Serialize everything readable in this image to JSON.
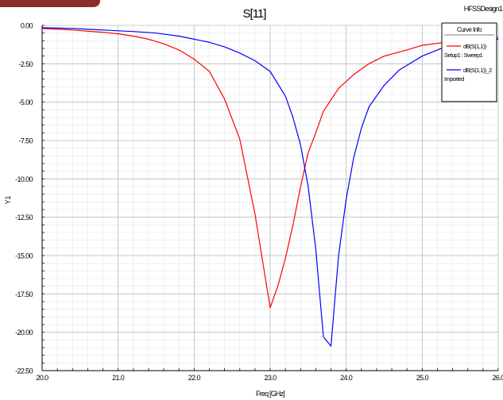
{
  "chart_data": {
    "type": "line",
    "title": "S[11]",
    "design_label": "HFSSDesign1",
    "xlabel": "Freq [GHz]",
    "ylabel": "Y1",
    "xlim": [
      20.0,
      26.0
    ],
    "ylim": [
      -22.5,
      0.0
    ],
    "xticks": [
      20.0,
      21.0,
      22.0,
      23.0,
      24.0,
      25.0,
      26.0
    ],
    "xtick_labels": [
      "20.0",
      "21.0",
      "22.0",
      "23.0",
      "24.0",
      "25.0",
      "26.0"
    ],
    "yticks": [
      0.0,
      -2.5,
      -5.0,
      -7.5,
      -10.0,
      -12.5,
      -15.0,
      -17.5,
      -20.0,
      -22.5
    ],
    "ytick_labels": [
      "0.00",
      "-2.50",
      "-5.00",
      "-7.50",
      "-10.00",
      "-12.50",
      "-15.00",
      "-17.50",
      "-20.00",
      "-22.50"
    ],
    "grid": true,
    "legend": {
      "title": "Curve Info",
      "placement": "top-right",
      "entries": [
        {
          "label": "dB(S(1,1))",
          "sublabel": "Setup1 : Sweep1",
          "color": "#ff0000"
        },
        {
          "label": "dB(S(1,1))_2",
          "sublabel": "Imported",
          "color": "#0000ff"
        }
      ]
    },
    "series": [
      {
        "color": "#ff0000",
        "x": [
          20.0,
          20.4,
          20.8,
          21.0,
          21.2,
          21.4,
          21.6,
          21.8,
          22.0,
          22.2,
          22.4,
          22.6,
          22.8,
          23.0,
          23.1,
          23.2,
          23.3,
          23.4,
          23.5,
          23.6,
          23.7,
          23.9,
          24.1,
          24.3,
          24.5,
          24.8,
          25.0,
          25.3,
          25.6,
          26.0
        ],
        "y": [
          -0.2,
          -0.3,
          -0.45,
          -0.55,
          -0.7,
          -0.9,
          -1.2,
          -1.6,
          -2.2,
          -3.0,
          -4.8,
          -7.4,
          -12.3,
          -18.4,
          -17.0,
          -15.2,
          -13.0,
          -10.5,
          -8.3,
          -7.0,
          -5.6,
          -4.1,
          -3.2,
          -2.5,
          -2.0,
          -1.6,
          -1.3,
          -1.1,
          -0.9,
          -0.8
        ]
      },
      {
        "color": "#0000ff",
        "x": [
          20.0,
          20.4,
          20.8,
          21.0,
          21.2,
          21.5,
          21.8,
          22.0,
          22.2,
          22.4,
          22.6,
          22.8,
          23.0,
          23.2,
          23.3,
          23.4,
          23.5,
          23.6,
          23.7,
          23.8,
          23.9,
          24.0,
          24.1,
          24.2,
          24.3,
          24.5,
          24.7,
          25.0,
          25.3,
          25.6,
          26.0
        ],
        "y": [
          -0.15,
          -0.2,
          -0.3,
          -0.35,
          -0.4,
          -0.5,
          -0.7,
          -0.9,
          -1.1,
          -1.4,
          -1.8,
          -2.3,
          -3.0,
          -4.6,
          -6.0,
          -7.8,
          -10.5,
          -14.6,
          -20.3,
          -20.9,
          -15.0,
          -11.3,
          -8.6,
          -6.7,
          -5.3,
          -3.9,
          -2.9,
          -2.0,
          -1.4,
          -1.1,
          -0.9
        ]
      }
    ]
  }
}
